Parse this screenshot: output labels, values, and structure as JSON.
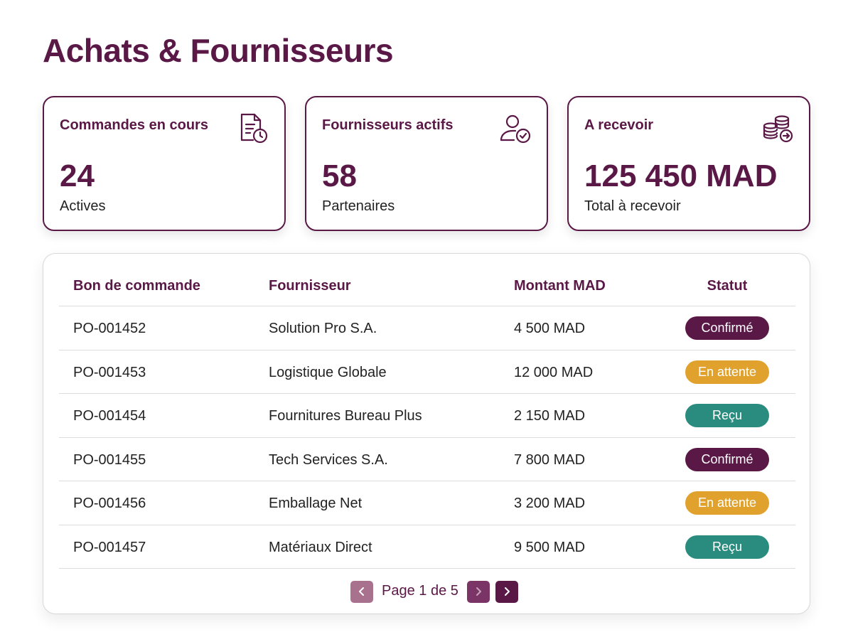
{
  "page": {
    "title": "Achats & Fournisseurs"
  },
  "cards": [
    {
      "title": "Commandes en cours",
      "value": "24",
      "subtitle": "Actives",
      "icon": "document-clock-icon"
    },
    {
      "title": "Fournisseurs actifs",
      "value": "58",
      "subtitle": "Partenaires",
      "icon": "user-check-icon"
    },
    {
      "title": "A recevoir",
      "value": "125 450 MAD",
      "subtitle": "Total à recevoir",
      "icon": "coins-arrow-icon"
    }
  ],
  "table": {
    "headers": [
      "Bon de commande",
      "Fournisseur",
      "Montant MAD",
      "Statut"
    ],
    "rows": [
      {
        "po": "PO-001452",
        "supplier": "Solution Pro S.A.",
        "amount": "4 500 MAD",
        "status": "Confirmé",
        "status_type": "confirmed"
      },
      {
        "po": "PO-001453",
        "supplier": "Logistique Globale",
        "amount": "12 000 MAD",
        "status": "En attente",
        "status_type": "pending"
      },
      {
        "po": "PO-001454",
        "supplier": "Fournitures Bureau Plus",
        "amount": "2 150 MAD",
        "status": "Reçu",
        "status_type": "received"
      },
      {
        "po": "PO-001455",
        "supplier": "Tech Services S.A.",
        "amount": "7 800 MAD",
        "status": "Confirmé",
        "status_type": "confirmed"
      },
      {
        "po": "PO-001456",
        "supplier": "Emballage Net",
        "amount": "3 200 MAD",
        "status": "En attente",
        "status_type": "pending"
      },
      {
        "po": "PO-001457",
        "supplier": "Matériaux Direct",
        "amount": "9 500 MAD",
        "status": "Reçu",
        "status_type": "received"
      }
    ]
  },
  "pagination": {
    "label": "Page 1 de 5",
    "current_page": 1,
    "total_pages": 5
  },
  "colors": {
    "brand": "#5a1846",
    "pending": "#e0a22c",
    "received": "#2a8c7f"
  }
}
